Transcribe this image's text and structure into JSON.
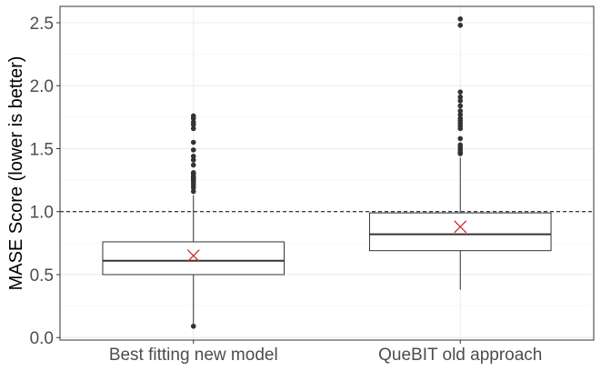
{
  "chart_data": {
    "type": "boxplot",
    "title": "",
    "xlabel": "",
    "ylabel": "MASE Score (lower is better)",
    "ylim": [
      -0.02,
      2.63
    ],
    "yticks": [
      0.0,
      0.5,
      1.0,
      1.5,
      2.0,
      2.5
    ],
    "ytick_labels": [
      "0.0",
      "0.5",
      "1.0",
      "1.5",
      "2.0",
      "2.5"
    ],
    "grid": true,
    "reference_line": {
      "y": 1.0,
      "style": "dashed",
      "color": "#000000"
    },
    "categories": [
      "Best fitting new model",
      "QueBIT old approach"
    ],
    "boxes": [
      {
        "name": "Best fitting new model",
        "whisker_low": 0.1,
        "q1": 0.5,
        "median": 0.61,
        "q3": 0.76,
        "whisker_high": 1.13,
        "mean": 0.65,
        "outliers": [
          1.16,
          1.19,
          1.21,
          1.23,
          1.25,
          1.26,
          1.27,
          1.28,
          1.3,
          1.31,
          1.37,
          1.41,
          1.44,
          1.49,
          1.55,
          1.66,
          1.69,
          1.71,
          1.74,
          1.76,
          0.09
        ]
      },
      {
        "name": "QueBIT old approach",
        "whisker_low": 0.38,
        "q1": 0.69,
        "median": 0.82,
        "q3": 0.99,
        "whisker_high": 1.43,
        "mean": 0.88,
        "outliers": [
          1.46,
          1.47,
          1.49,
          1.51,
          1.53,
          1.58,
          1.66,
          1.68,
          1.7,
          1.72,
          1.74,
          1.77,
          1.8,
          1.84,
          1.88,
          1.91,
          1.95,
          2.48,
          2.53
        ]
      }
    ],
    "colors": {
      "box_fill": "#ffffff",
      "box_stroke": "#333333",
      "median": "#333333",
      "outlier": "#333333",
      "mean_marker": "#d62728",
      "grid_major": "#ebebeb",
      "grid_minor": "#f5f5f5",
      "panel_border": "#333333"
    }
  }
}
